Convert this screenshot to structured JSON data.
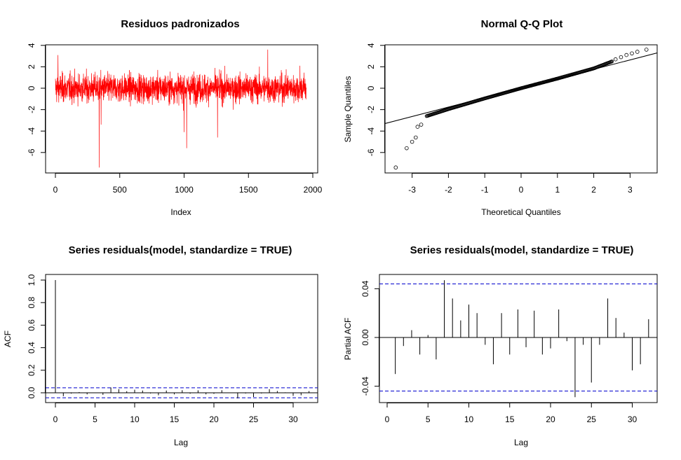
{
  "colors": {
    "residual_line": "#ff0000",
    "confidence_band": "#0000cd",
    "foreground": "#000000",
    "background": "#ffffff"
  },
  "chart_data": [
    {
      "type": "line",
      "title": "Residuos padronizados",
      "xlabel": "Index",
      "ylabel": "",
      "xlim": [
        0,
        1950
      ],
      "ylim": [
        -7.4,
        3.6
      ],
      "xticks": [
        "0",
        "500",
        "1000",
        "1500",
        "2000"
      ],
      "yticks": [
        "4",
        "2",
        "0",
        "-2",
        "-4",
        "-6"
      ],
      "n": 1950,
      "series": [
        {
          "color": "#ff0000",
          "typical_range": [
            -1.8,
            1.8
          ],
          "notable_points": [
            {
              "x": 20,
              "y": 3.1
            },
            {
              "x": 340,
              "y": -7.4
            },
            {
              "x": 355,
              "y": -3.4
            },
            {
              "x": 1000,
              "y": -4.1
            },
            {
              "x": 1020,
              "y": -5.6
            },
            {
              "x": 1260,
              "y": -4.6
            },
            {
              "x": 1650,
              "y": 3.6
            },
            {
              "x": 1900,
              "y": 2.1
            }
          ]
        }
      ]
    },
    {
      "type": "scatter",
      "title": "Normal Q-Q Plot",
      "xlabel": "Theoretical Quantiles",
      "ylabel": "Sample Quantiles",
      "xlim": [
        -3.5,
        3.5
      ],
      "ylim": [
        -7.4,
        3.6
      ],
      "xticks": [
        "-3",
        "-2",
        "-1",
        "0",
        "1",
        "2",
        "3"
      ],
      "yticks": [
        "4",
        "2",
        "0",
        "-2",
        "-4",
        "-6"
      ],
      "n": 1950,
      "reference_line": {
        "slope": 0.88,
        "intercept": 0.0
      },
      "points_lower_tail": [
        {
          "x": -3.45,
          "y": -7.4
        },
        {
          "x": -3.15,
          "y": -5.6
        },
        {
          "x": -3.0,
          "y": -5.0
        },
        {
          "x": -2.9,
          "y": -4.6
        },
        {
          "x": -2.85,
          "y": -3.6
        },
        {
          "x": -2.75,
          "y": -3.4
        }
      ],
      "points_upper_tail": [
        {
          "x": 2.6,
          "y": 2.7
        },
        {
          "x": 2.75,
          "y": 2.9
        },
        {
          "x": 2.9,
          "y": 3.1
        },
        {
          "x": 3.05,
          "y": 3.25
        },
        {
          "x": 3.2,
          "y": 3.4
        },
        {
          "x": 3.45,
          "y": 3.6
        }
      ],
      "body_curve": [
        {
          "x": -2.6,
          "y": -2.6
        },
        {
          "x": -2.0,
          "y": -1.95
        },
        {
          "x": -1.0,
          "y": -0.95
        },
        {
          "x": 0.0,
          "y": 0.0
        },
        {
          "x": 1.0,
          "y": 0.9
        },
        {
          "x": 2.0,
          "y": 1.85
        },
        {
          "x": 2.5,
          "y": 2.5
        }
      ]
    },
    {
      "type": "bar",
      "title": "Series  residuals(model, standardize = TRUE)",
      "xlabel": "Lag",
      "ylabel": "ACF",
      "xlim": [
        0,
        32
      ],
      "ylim": [
        -0.05,
        1.0
      ],
      "xticks": [
        "0",
        "5",
        "10",
        "15",
        "20",
        "25",
        "30"
      ],
      "yticks": [
        "0.0",
        "0.2",
        "0.4",
        "0.6",
        "0.8",
        "1.0"
      ],
      "confidence_limit": 0.044,
      "x": [
        0,
        1,
        2,
        3,
        4,
        5,
        6,
        7,
        8,
        9,
        10,
        11,
        12,
        13,
        14,
        15,
        16,
        17,
        18,
        19,
        20,
        21,
        22,
        23,
        24,
        25,
        26,
        27,
        28,
        29,
        30,
        31,
        32
      ],
      "values": [
        1.0,
        -0.03,
        -0.007,
        0.006,
        -0.014,
        0.002,
        -0.018,
        0.047,
        0.032,
        0.014,
        0.027,
        0.02,
        -0.006,
        -0.022,
        0.02,
        -0.014,
        0.023,
        -0.008,
        0.022,
        -0.014,
        -0.009,
        0.023,
        -0.003,
        -0.049,
        -0.006,
        -0.037,
        -0.006,
        0.032,
        0.016,
        0.004,
        -0.027,
        -0.022,
        0.015
      ]
    },
    {
      "type": "bar",
      "title": "Series  residuals(model, standardize = TRUE)",
      "xlabel": "Lag",
      "ylabel": "Partial ACF",
      "xlim": [
        0,
        32
      ],
      "ylim": [
        -0.05,
        0.047
      ],
      "xticks": [
        "0",
        "5",
        "10",
        "15",
        "20",
        "25",
        "30"
      ],
      "yticks": [
        "0.04",
        "0.00",
        "-0.04"
      ],
      "confidence_limit": 0.044,
      "x": [
        1,
        2,
        3,
        4,
        5,
        6,
        7,
        8,
        9,
        10,
        11,
        12,
        13,
        14,
        15,
        16,
        17,
        18,
        19,
        20,
        21,
        22,
        23,
        24,
        25,
        26,
        27,
        28,
        29,
        30,
        31,
        32
      ],
      "values": [
        -0.03,
        -0.007,
        0.006,
        -0.014,
        0.002,
        -0.018,
        0.047,
        0.032,
        0.014,
        0.027,
        0.02,
        -0.006,
        -0.022,
        0.02,
        -0.014,
        0.023,
        -0.008,
        0.022,
        -0.014,
        -0.009,
        0.023,
        -0.003,
        -0.049,
        -0.006,
        -0.037,
        -0.006,
        0.032,
        0.016,
        0.004,
        -0.027,
        -0.022,
        0.015
      ]
    }
  ]
}
